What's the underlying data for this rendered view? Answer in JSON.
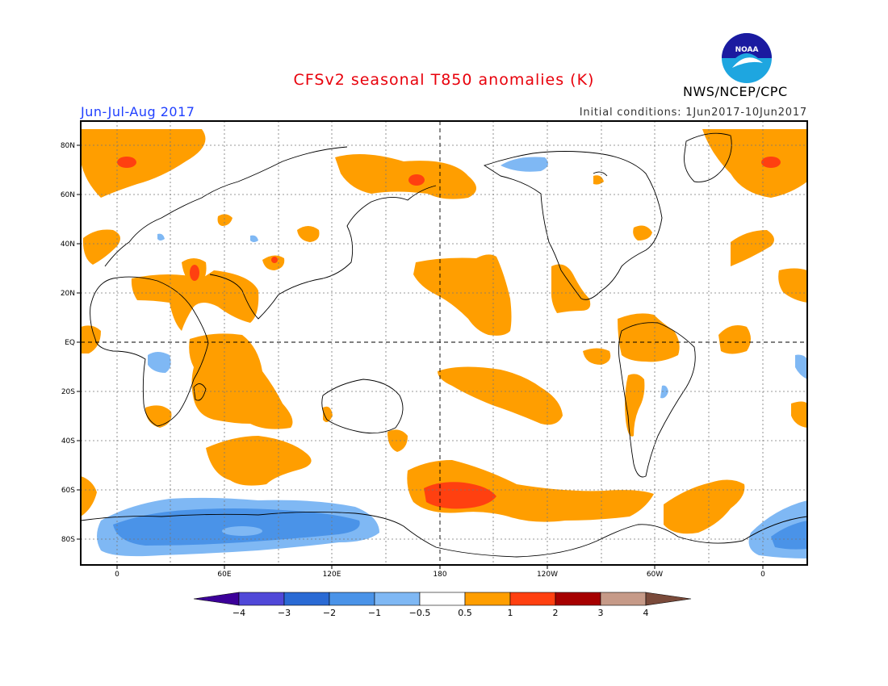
{
  "header": {
    "title": "CFSv2 seasonal T850 anomalies (K)",
    "agency": "NWS/NCEP/CPC",
    "season": "Jun-Jul-Aug 2017",
    "initial_conditions": "Initial conditions: 1Jun2017-10Jun2017",
    "logo_text": "NOAA"
  },
  "axes": {
    "lat_labels": [
      "80N",
      "60N",
      "40N",
      "20N",
      "EQ",
      "20S",
      "40S",
      "60S",
      "80S"
    ],
    "lon_labels": [
      "0",
      "60E",
      "120E",
      "180",
      "120W",
      "60W",
      "0"
    ]
  },
  "colorbar": {
    "labels": [
      "-4",
      "-3",
      "-2",
      "-1",
      "-0.5",
      "0.5",
      "1",
      "2",
      "3",
      "4"
    ],
    "colors": [
      "#3c0099",
      "#5048d8",
      "#2a6ad4",
      "#4a93e8",
      "#7fb8f4",
      "#ffffff",
      "#ff9e00",
      "#ff4010",
      "#a60000",
      "#c69a88",
      "#7a4a3a"
    ]
  }
}
